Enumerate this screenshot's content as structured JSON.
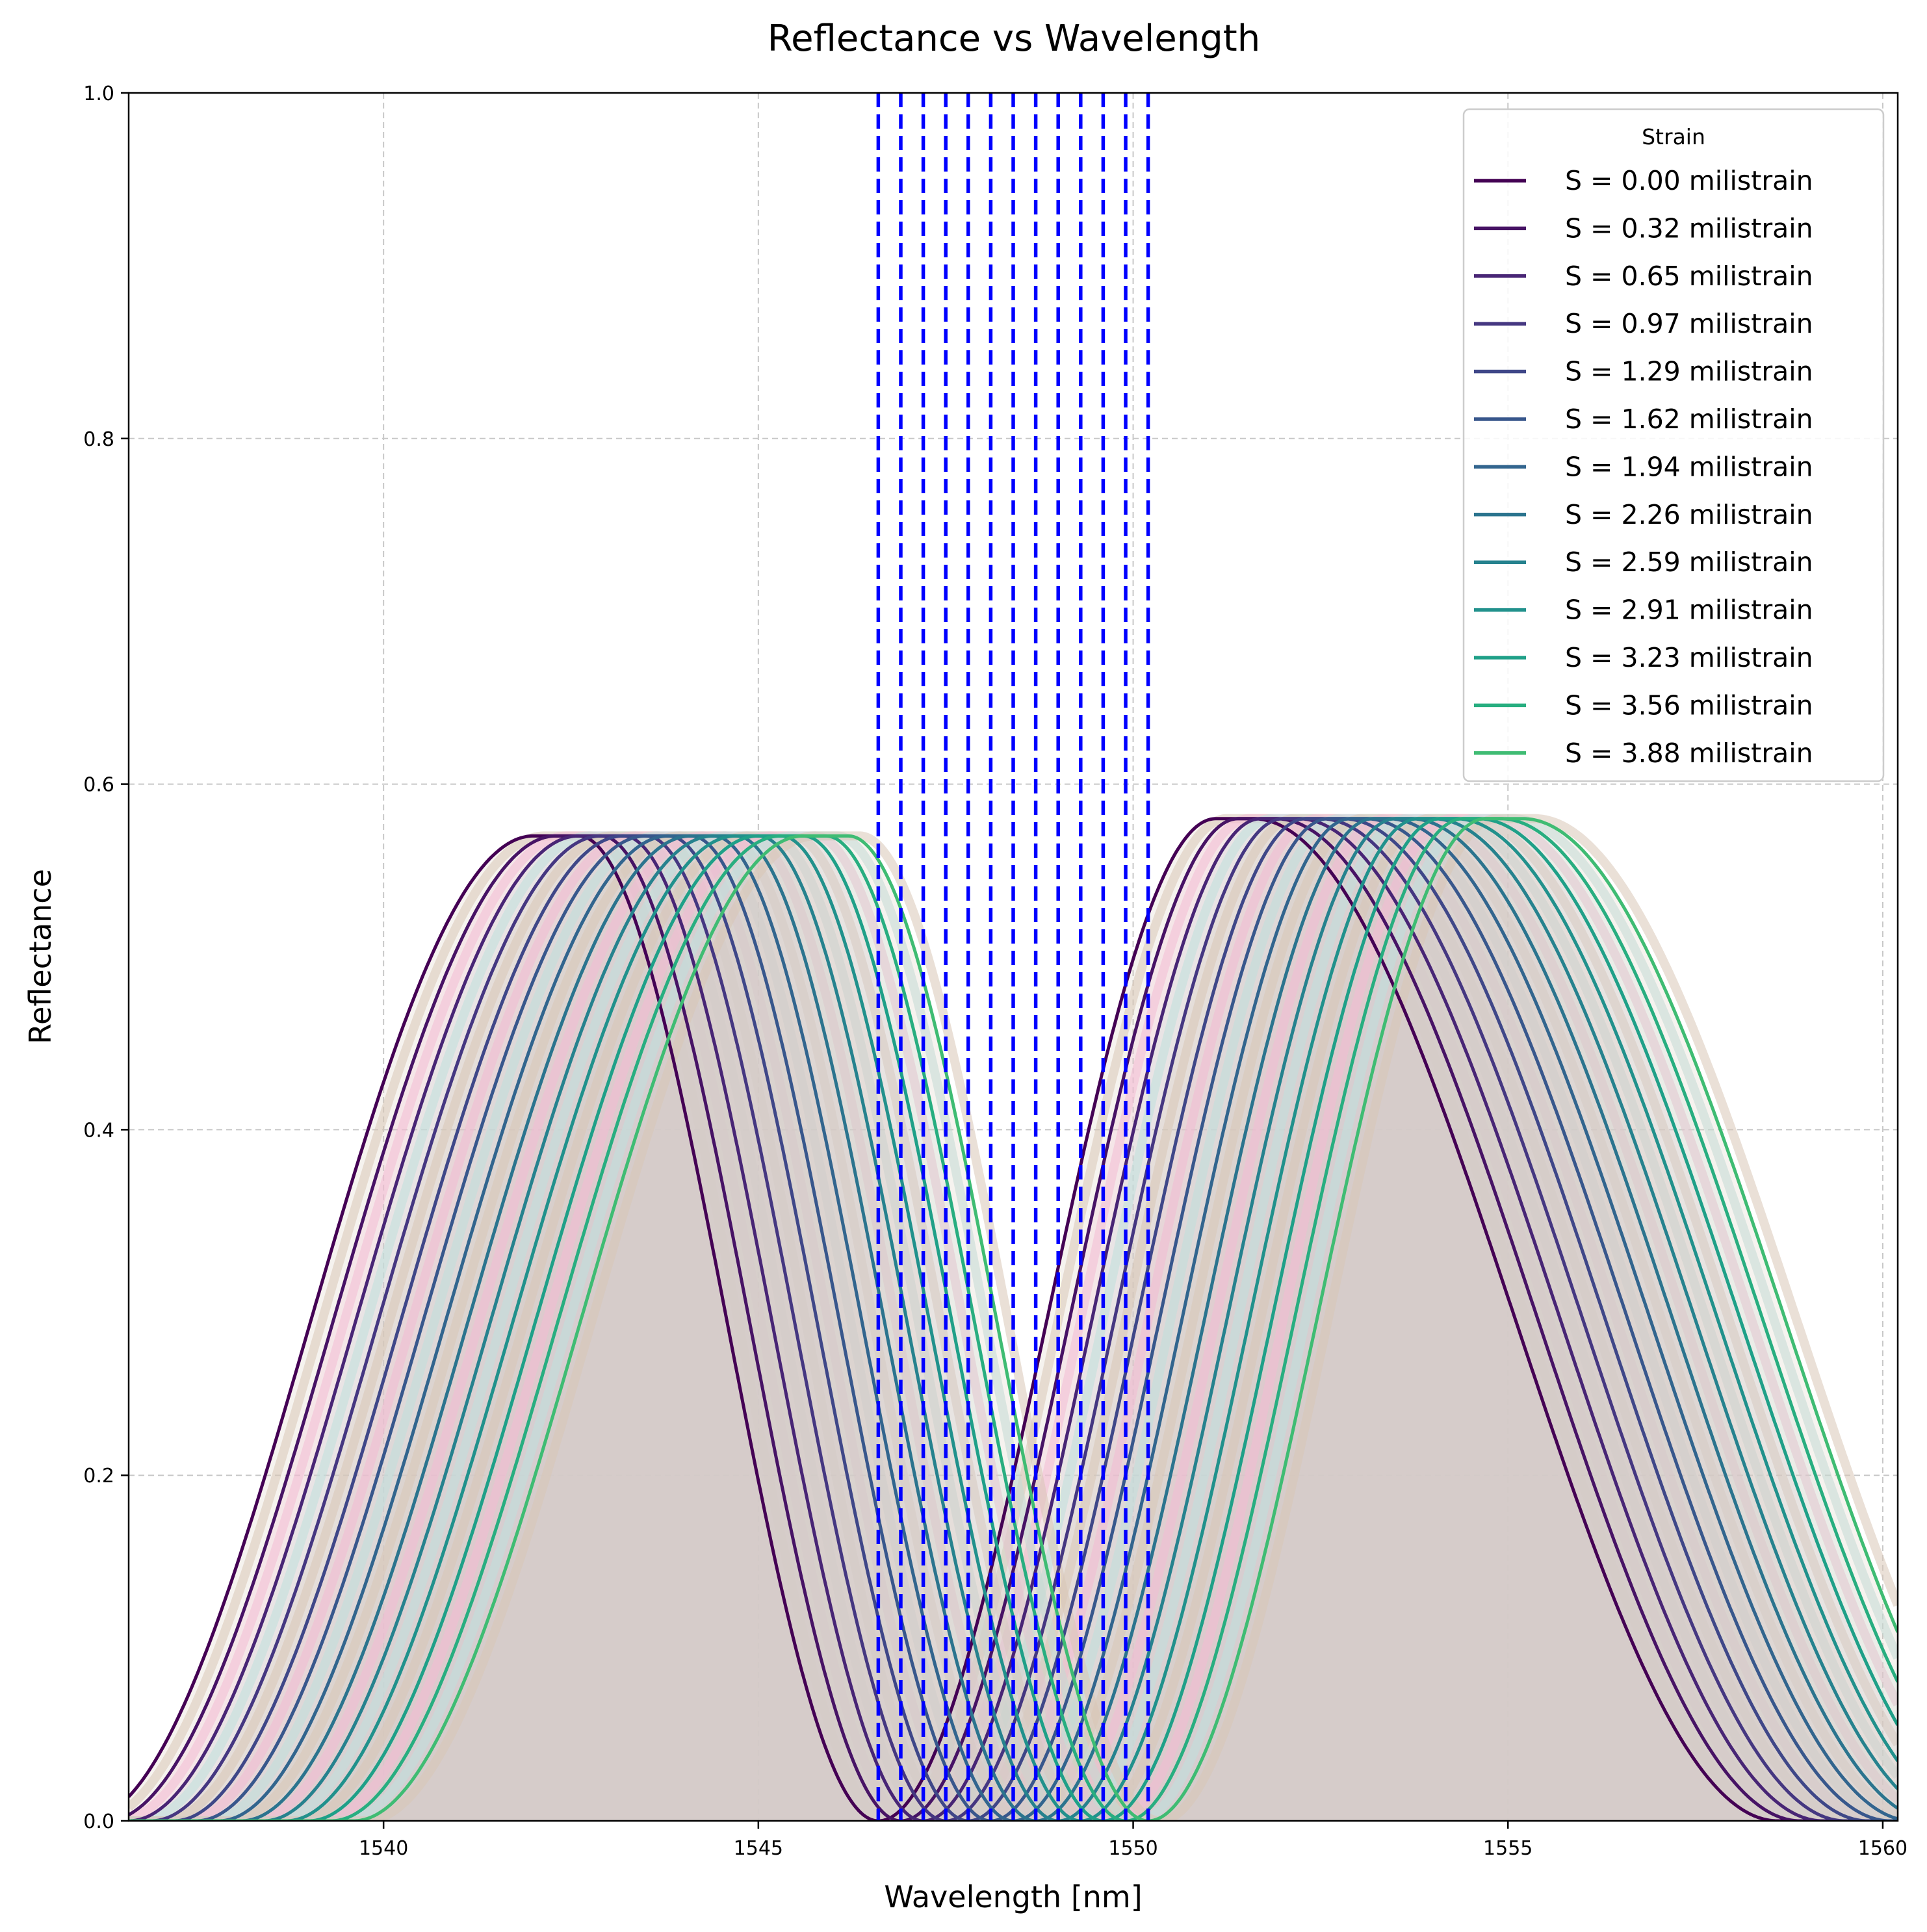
{
  "chart_data": {
    "type": "line",
    "title": "Reflectance vs Wavelength",
    "xlabel": "Wavelength [nm]",
    "ylabel": "Reflectance",
    "xlim": [
      1536.6,
      1560.2
    ],
    "ylim": [
      0.0,
      1.0
    ],
    "xticks": [
      1540,
      1545,
      1550,
      1555,
      1560
    ],
    "xtick_labels": [
      "1540",
      "1545",
      "1550",
      "1555",
      "1560"
    ],
    "yticks": [
      0.0,
      0.2,
      0.4,
      0.6,
      0.8,
      1.0
    ],
    "ytick_labels": [
      "0.0",
      "0.2",
      "0.4",
      "0.6",
      "0.8",
      "1.0"
    ],
    "grid": true,
    "legend": {
      "title": "Strain",
      "position": "top-right"
    },
    "peak_model": {
      "left_lobe": {
        "peak": 0.57,
        "left_zero": 1536.0,
        "top_start": 1542.0,
        "top_end": 1542.6,
        "right_zero": 1546.6
      },
      "right_lobe": {
        "peak": 0.58,
        "left_zero": 1546.6,
        "top_start": 1551.1,
        "top_end": 1551.6,
        "right_zero": 1558.6
      },
      "shift_per_step_nm": 0.3
    },
    "series": [
      {
        "name": "S = 0.00 milistrain",
        "strain": 0.0,
        "shift_nm": 0.0,
        "marker_nm": 1546.6,
        "color": "#440154"
      },
      {
        "name": "S = 0.32 milistrain",
        "strain": 0.32,
        "shift_nm": 0.3,
        "marker_nm": 1546.9,
        "color": "#471365"
      },
      {
        "name": "S = 0.65 milistrain",
        "strain": 0.65,
        "shift_nm": 0.6,
        "marker_nm": 1547.2,
        "color": "#482575"
      },
      {
        "name": "S = 0.97 milistrain",
        "strain": 0.97,
        "shift_nm": 0.9,
        "marker_nm": 1547.5,
        "color": "#453781"
      },
      {
        "name": "S = 1.29 milistrain",
        "strain": 1.29,
        "shift_nm": 1.2,
        "marker_nm": 1547.8,
        "color": "#3f4788"
      },
      {
        "name": "S = 1.62 milistrain",
        "strain": 1.62,
        "shift_nm": 1.5,
        "marker_nm": 1548.1,
        "color": "#38578c"
      },
      {
        "name": "S = 1.94 milistrain",
        "strain": 1.94,
        "shift_nm": 1.8,
        "marker_nm": 1548.4,
        "color": "#32658e"
      },
      {
        "name": "S = 2.26 milistrain",
        "strain": 2.26,
        "shift_nm": 2.1,
        "marker_nm": 1548.7,
        "color": "#2b748e"
      },
      {
        "name": "S = 2.59 milistrain",
        "strain": 2.59,
        "shift_nm": 2.4,
        "marker_nm": 1549.0,
        "color": "#26828e"
      },
      {
        "name": "S = 2.91 milistrain",
        "strain": 2.91,
        "shift_nm": 2.7,
        "marker_nm": 1549.3,
        "color": "#21918c"
      },
      {
        "name": "S = 3.23 milistrain",
        "strain": 3.23,
        "shift_nm": 3.0,
        "marker_nm": 1549.6,
        "color": "#1fa088"
      },
      {
        "name": "S = 3.56 milistrain",
        "strain": 3.56,
        "shift_nm": 3.3,
        "marker_nm": 1549.9,
        "color": "#28ae80"
      },
      {
        "name": "S = 3.88 milistrain",
        "strain": 3.88,
        "shift_nm": 3.6,
        "marker_nm": 1550.2,
        "color": "#3fbc73"
      }
    ],
    "marker_line_color": "#0000ff",
    "shading_colors": [
      "#d8c7b6",
      "#f2bcd3",
      "#bfe0dc"
    ]
  }
}
